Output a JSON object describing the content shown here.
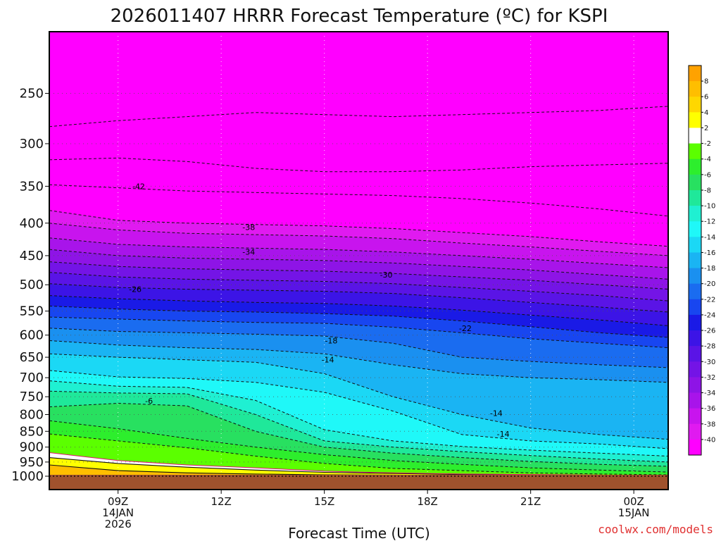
{
  "chart_data": {
    "type": "heatmap",
    "title": "2026011407 HRRR Forecast Temperature (ºC) for KSPI",
    "xlabel": "Forecast Time (UTC)",
    "credit": "coolwx.com/models",
    "pressure_axis": {
      "ylim": [
        1000,
        200
      ],
      "tick_labels": [
        {
          "value": 250,
          "label": "250"
        },
        {
          "value": 300,
          "label": "300"
        },
        {
          "value": 350,
          "label": "350"
        },
        {
          "value": 400,
          "label": "400"
        },
        {
          "value": 450,
          "label": "450"
        },
        {
          "value": 500,
          "label": "500"
        },
        {
          "value": 550,
          "label": "550"
        },
        {
          "value": 600,
          "label": "600"
        },
        {
          "value": 650,
          "label": "650"
        },
        {
          "value": 700,
          "label": "700"
        },
        {
          "value": 750,
          "label": "750"
        },
        {
          "value": 800,
          "label": "800"
        },
        {
          "value": 850,
          "label": "850"
        },
        {
          "value": 900,
          "label": "900"
        },
        {
          "value": 950,
          "label": "950"
        },
        {
          "value": 1000,
          "label": "1000"
        }
      ]
    },
    "time_axis": {
      "range_hours": [
        7,
        25
      ],
      "ticks": [
        {
          "hour": 9,
          "lines": [
            "09Z",
            "14JAN",
            "2026"
          ]
        },
        {
          "hour": 12,
          "lines": [
            "12Z"
          ]
        },
        {
          "hour": 15,
          "lines": [
            "15Z"
          ]
        },
        {
          "hour": 18,
          "lines": [
            "18Z"
          ]
        },
        {
          "hour": 21,
          "lines": [
            "21Z"
          ]
        },
        {
          "hour": 24,
          "lines": [
            "00Z",
            "15JAN"
          ]
        }
      ]
    },
    "colorbar": {
      "labels": [
        "8",
        "6",
        "4",
        "2",
        "-2",
        "-4",
        "-6",
        "-8",
        "-10",
        "-12",
        "-14",
        "-16",
        "-18",
        "-20",
        "-22",
        "-24",
        "-26",
        "-28",
        "-30",
        "-32",
        "-34",
        "-36",
        "-38",
        "-40"
      ],
      "colors": [
        "#ffa200",
        "#ffbe00",
        "#ffd700",
        "#ffff00",
        "#ffffff",
        "#5bff00",
        "#2dee2d",
        "#28e060",
        "#1fe89a",
        "#1ff0d2",
        "#1ff8f8",
        "#1bd8f5",
        "#1ab4f3",
        "#1a90f0",
        "#1a6cf0",
        "#1846f0",
        "#1a1ae6",
        "#3c14e6",
        "#5a14e6",
        "#7414e6",
        "#8e14e6",
        "#a814ea",
        "#c814ee",
        "#e01af0",
        "#ff00ff"
      ]
    },
    "temperature_bands": [
      {
        "t": 6,
        "p": [
          960,
          980,
          988,
          992,
          995,
          996,
          998,
          999,
          1000,
          1000
        ]
      },
      {
        "t": 2,
        "p": [
          935,
          955,
          968,
          978,
          986,
          990,
          994,
          996,
          998,
          999
        ]
      },
      {
        "t": 0,
        "p": [
          918,
          945,
          960,
          970,
          982,
          988,
          992,
          994,
          996,
          998
        ]
      },
      {
        "t": -2,
        "p": [
          858,
          880,
          902,
          930,
          955,
          972,
          980,
          988,
          992,
          995
        ]
      },
      {
        "t": -4,
        "p": [
          818,
          842,
          872,
          900,
          925,
          945,
          958,
          970,
          978,
          985
        ]
      },
      {
        "t": -6,
        "p": [
          778,
          768,
          775,
          850,
          900,
          920,
          935,
          948,
          958,
          965
        ]
      },
      {
        "t": -8,
        "p": [
          735,
          740,
          742,
          800,
          880,
          900,
          915,
          928,
          940,
          950
        ]
      },
      {
        "t": -10,
        "p": [
          708,
          722,
          725,
          760,
          845,
          880,
          898,
          910,
          920,
          930
        ]
      },
      {
        "t": -12,
        "p": [
          682,
          698,
          702,
          712,
          738,
          790,
          860,
          880,
          890,
          905
        ]
      },
      {
        "t": -14,
        "p": [
          642,
          650,
          656,
          662,
          690,
          750,
          800,
          840,
          860,
          875
        ]
      },
      {
        "t": -16,
        "p": [
          612,
          622,
          628,
          632,
          642,
          668,
          690,
          700,
          705,
          712
        ]
      },
      {
        "t": -18,
        "p": [
          585,
          592,
          595,
          598,
          602,
          618,
          650,
          660,
          668,
          675
        ]
      },
      {
        "t": -20,
        "p": [
          562,
          566,
          570,
          573,
          575,
          583,
          595,
          608,
          618,
          628
        ]
      },
      {
        "t": -22,
        "p": [
          540,
          546,
          550,
          552,
          555,
          560,
          570,
          582,
          595,
          605
        ]
      },
      {
        "t": -24,
        "p": [
          520,
          526,
          530,
          533,
          535,
          540,
          548,
          558,
          568,
          580
        ]
      },
      {
        "t": -26,
        "p": [
          498,
          505,
          508,
          510,
          512,
          516,
          524,
          533,
          542,
          552
        ]
      },
      {
        "t": -28,
        "p": [
          478,
          486,
          490,
          492,
          494,
          498,
          505,
          512,
          520,
          530
        ]
      },
      {
        "t": -30,
        "p": [
          460,
          468,
          472,
          474,
          476,
          480,
          486,
          492,
          500,
          508
        ]
      },
      {
        "t": -32,
        "p": [
          440,
          450,
          454,
          456,
          458,
          462,
          468,
          474,
          482,
          490
        ]
      },
      {
        "t": -34,
        "p": [
          422,
          432,
          436,
          438,
          440,
          444,
          450,
          456,
          463,
          470
        ]
      },
      {
        "t": -36,
        "p": [
          400,
          410,
          415,
          417,
          419,
          423,
          430,
          436,
          443,
          450
        ]
      },
      {
        "t": -38,
        "p": [
          382,
          396,
          400,
          402,
          404,
          408,
          414,
          420,
          428,
          435
        ]
      }
    ],
    "contour_labels": [
      {
        "text": "-42",
        "hour": 9.6,
        "p": 350
      },
      {
        "text": "-38",
        "hour": 12.8,
        "p": 406
      },
      {
        "text": "-34",
        "hour": 12.8,
        "p": 444
      },
      {
        "text": "-30",
        "hour": 16.8,
        "p": 482
      },
      {
        "text": "-26",
        "hour": 9.5,
        "p": 508
      },
      {
        "text": "-22",
        "hour": 19.1,
        "p": 585
      },
      {
        "text": "-18",
        "hour": 15.2,
        "p": 612
      },
      {
        "text": "-14",
        "hour": 15.1,
        "p": 656
      },
      {
        "text": "-6",
        "hour": 9.9,
        "p": 761
      },
      {
        "text": "-14",
        "hour": 20.0,
        "p": 796
      },
      {
        "text": "-14",
        "hour": 20.2,
        "p": 858
      }
    ]
  }
}
